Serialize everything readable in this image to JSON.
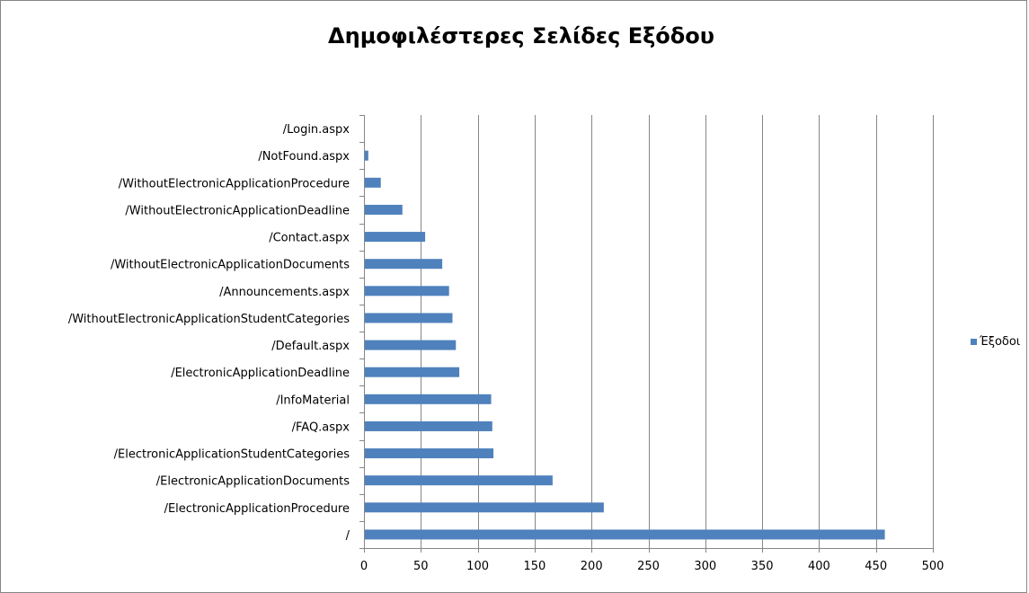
{
  "colors": {
    "bar": "#4F81BD",
    "gridline": "#868686",
    "axis": "#868686"
  },
  "chart_data": {
    "type": "bar",
    "orientation": "horizontal",
    "title": "Δημοφιλέστερες Σελίδες Εξόδου",
    "xlabel": "",
    "ylabel": "",
    "xlim": [
      0,
      500
    ],
    "x_ticks": [
      "0",
      "50",
      "100",
      "150",
      "200",
      "250",
      "300",
      "350",
      "400",
      "450",
      "500"
    ],
    "grid": "vertical major gridlines",
    "legend_position": "right",
    "categories": [
      "/Login.aspx",
      "/NotFound.aspx",
      "/WithoutElectronicApplicationProcedure",
      "/WithoutElectronicApplicationDeadline",
      "/Contact.aspx",
      "/WithoutElectronicApplicationDocuments",
      "/Announcements.aspx",
      "/WithoutElectronicApplicationStudentCategories",
      "/Default.aspx",
      "/ElectronicApplicationDeadline",
      "/InfoMaterial",
      "/FAQ.aspx",
      "/ElectronicApplicationStudentCategories",
      "/ElectronicApplicationDocuments",
      "/ElectronicApplicationProcedure",
      "/"
    ],
    "series": [
      {
        "name": "Έξοδοι",
        "values": [
          0,
          3,
          14,
          33,
          53,
          68,
          74,
          77,
          80,
          83,
          111,
          112,
          113,
          165,
          210,
          457
        ]
      }
    ]
  }
}
